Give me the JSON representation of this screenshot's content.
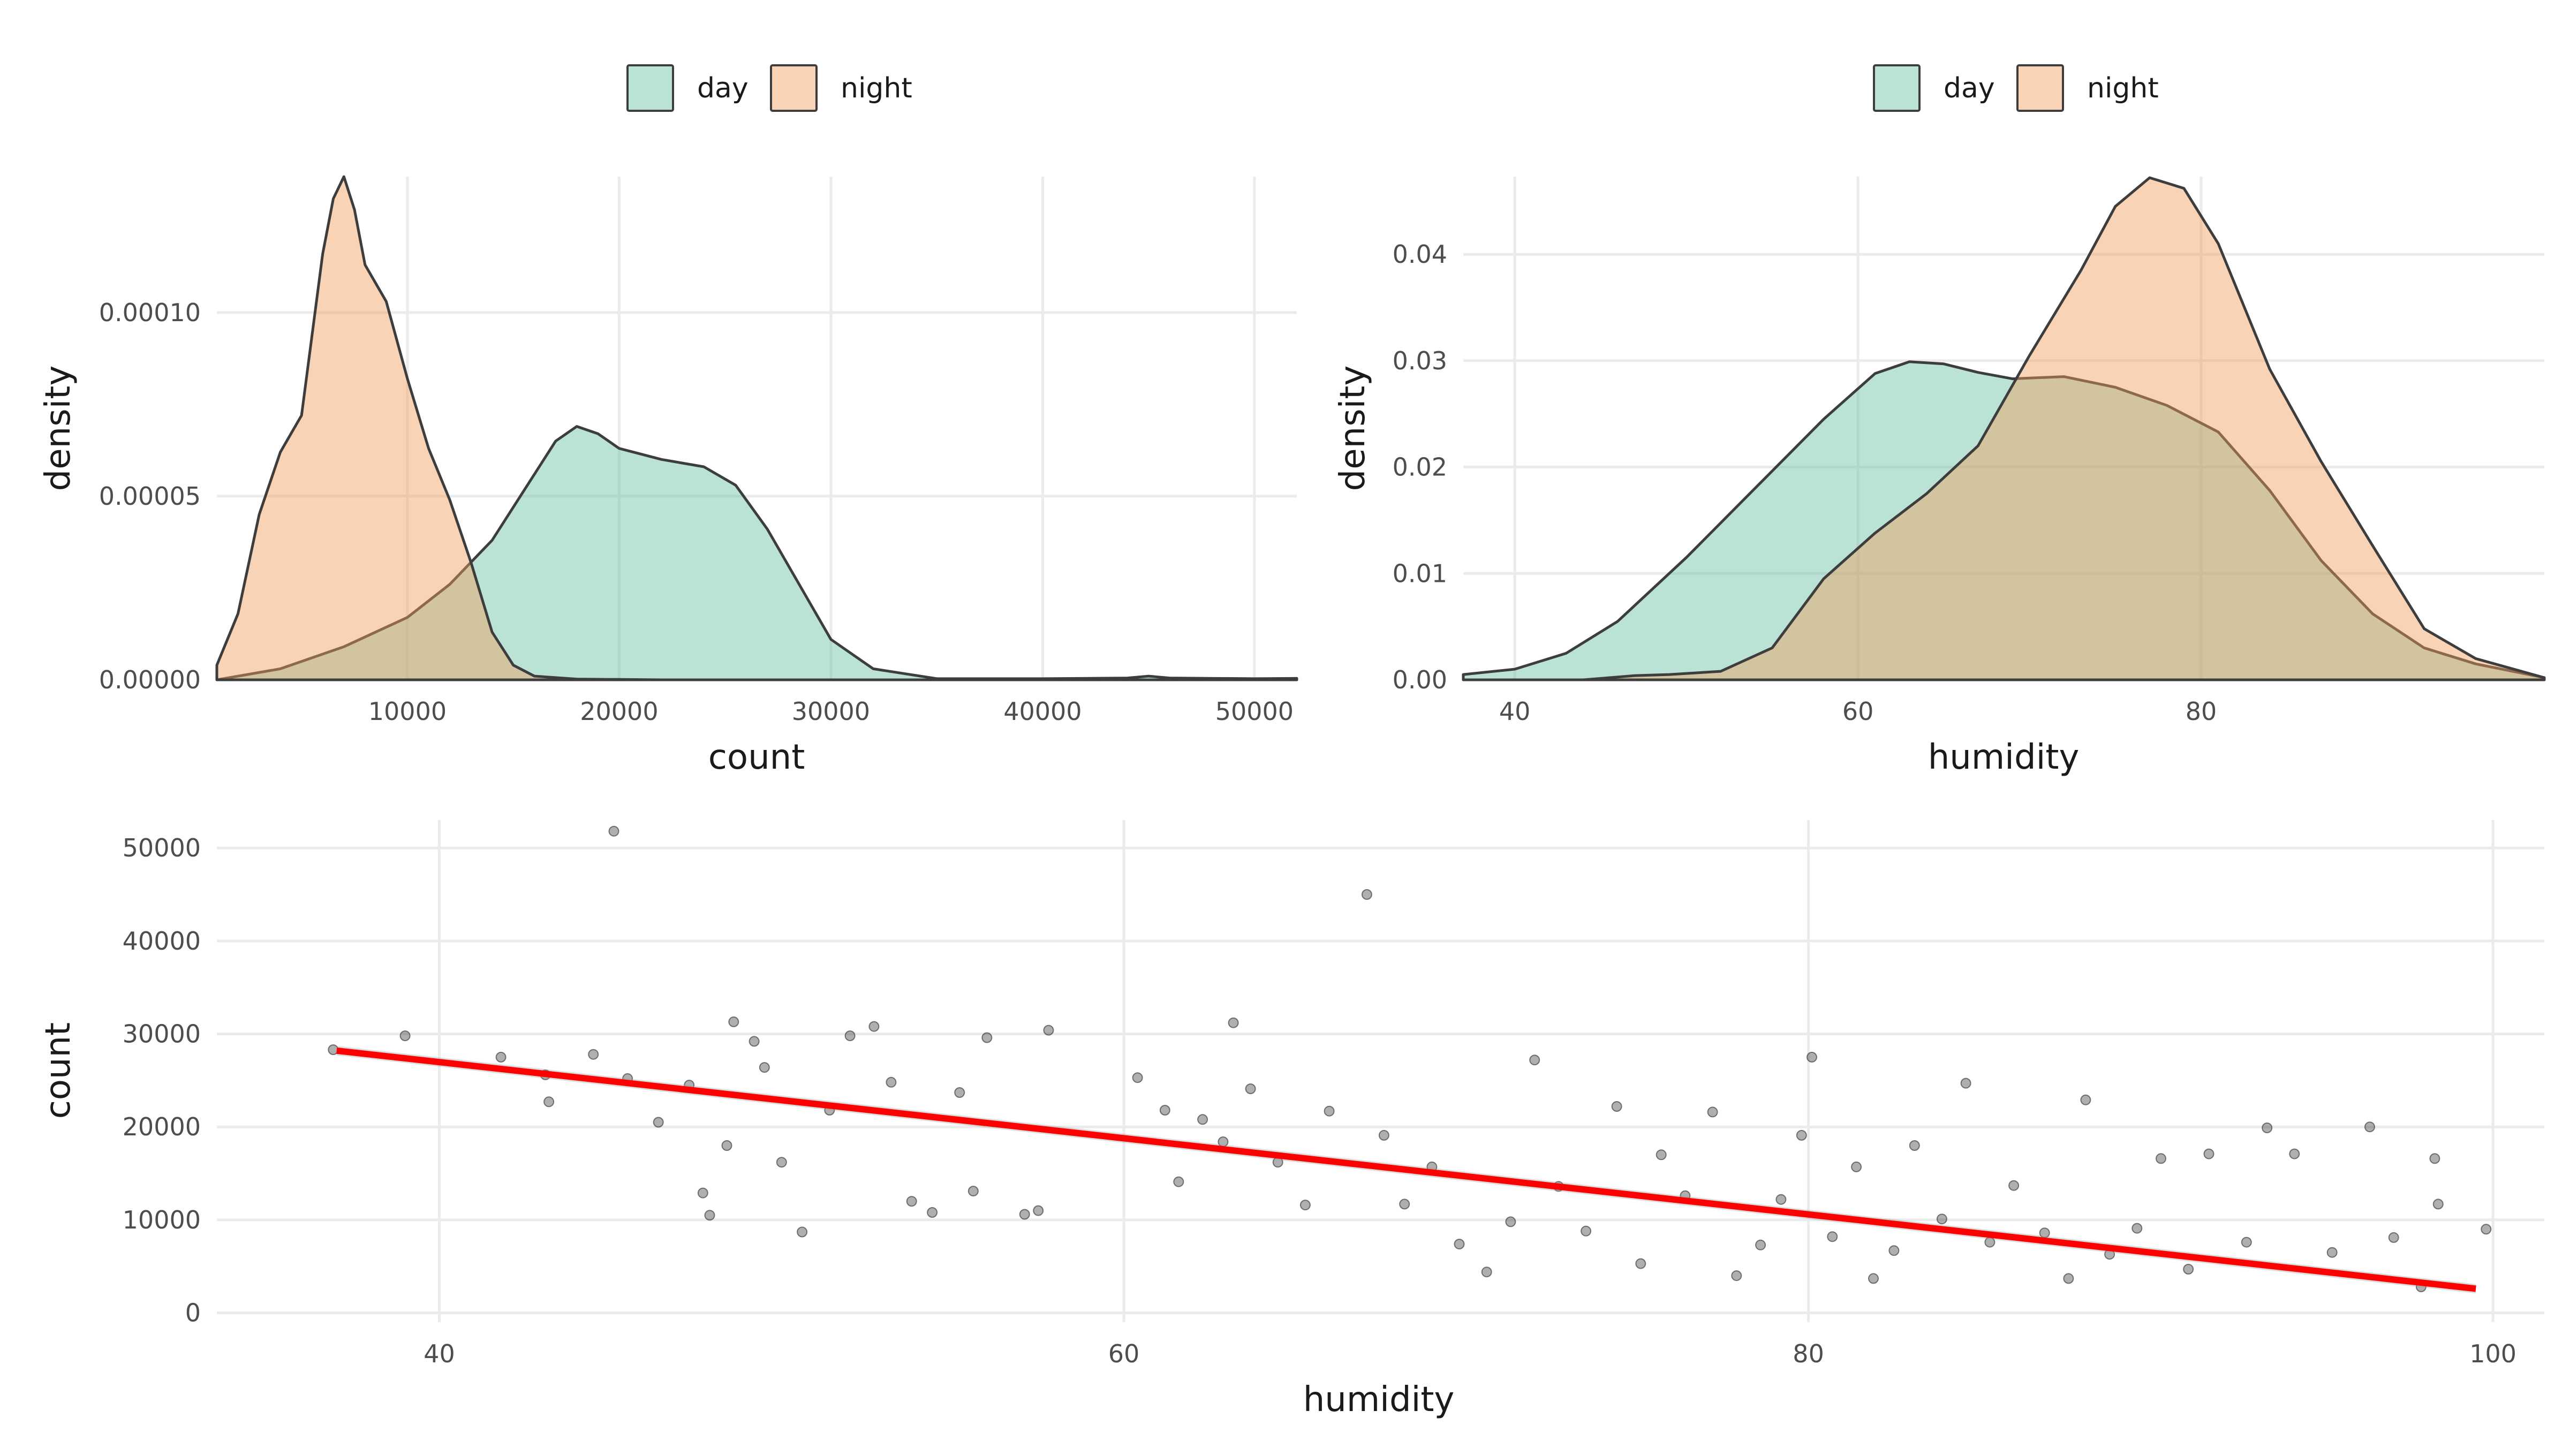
{
  "colors": {
    "day": "#66c2a5",
    "night": "#ef9d5e",
    "regression": "#ff0000",
    "points": "#1a1a1a",
    "outline": "#3d3d3d"
  },
  "chart_data": [
    {
      "type": "area",
      "subtype": "density",
      "xlabel": "count",
      "ylabel": "density",
      "xlim": [
        1000,
        52000
      ],
      "ylim": [
        0,
        0.000137
      ],
      "x_ticks": [
        10000,
        20000,
        30000,
        40000,
        50000
      ],
      "x_tick_labels": [
        "10000",
        "20000",
        "30000",
        "40000",
        "50000"
      ],
      "y_ticks": [
        0,
        5e-05,
        0.0001
      ],
      "y_tick_labels": [
        "0.00000",
        "0.00005",
        "0.00010"
      ],
      "legend": {
        "position": "top",
        "entries": [
          "day",
          "night"
        ]
      },
      "grid": true,
      "series": [
        {
          "name": "day",
          "x": [
            1000,
            4000,
            7000,
            10000,
            12000,
            14000,
            16000,
            17000,
            18000,
            19000,
            20000,
            22000,
            24000,
            25500,
            27000,
            28500,
            30000,
            32000,
            35000,
            40000,
            44000,
            45000,
            46000,
            50000,
            52000
          ],
          "y": [
            0,
            3e-06,
            9e-06,
            1.7e-05,
            2.6e-05,
            3.8e-05,
            5.6e-05,
            6.5e-05,
            6.9e-05,
            6.7e-05,
            6.3e-05,
            6e-05,
            5.8e-05,
            5.3e-05,
            4.1e-05,
            2.6e-05,
            1.1e-05,
            3e-06,
            3e-07,
            3e-07,
            5e-07,
            1e-06,
            5e-07,
            3e-07,
            4e-07
          ]
        },
        {
          "name": "night",
          "x": [
            1000,
            2000,
            3000,
            4000,
            5000,
            6000,
            6500,
            7000,
            7500,
            8000,
            9000,
            10000,
            11000,
            12000,
            13000,
            14000,
            15000,
            16000,
            18000,
            22000,
            30000,
            40000,
            52000
          ],
          "y": [
            4e-06,
            1.8e-05,
            4.5e-05,
            6.2e-05,
            7.2e-05,
            0.000116,
            0.000131,
            0.000137,
            0.000128,
            0.000113,
            0.000103,
            8.2e-05,
            6.3e-05,
            4.9e-05,
            3.2e-05,
            1.3e-05,
            4e-06,
            1e-06,
            2e-07,
            0,
            0,
            0,
            0
          ]
        }
      ]
    },
    {
      "type": "area",
      "subtype": "density",
      "xlabel": "humidity",
      "ylabel": "density",
      "xlim": [
        37,
        100
      ],
      "ylim": [
        0,
        0.0473
      ],
      "x_ticks": [
        40,
        60,
        80
      ],
      "x_tick_labels": [
        "40",
        "60",
        "80"
      ],
      "y_ticks": [
        0,
        0.01,
        0.02,
        0.03,
        0.04
      ],
      "y_tick_labels": [
        "0.00",
        "0.01",
        "0.02",
        "0.03",
        "0.04"
      ],
      "legend": {
        "position": "top",
        "entries": [
          "day",
          "night"
        ]
      },
      "grid": true,
      "series": [
        {
          "name": "day",
          "x": [
            37,
            40,
            43,
            46,
            50,
            54,
            58,
            61,
            63,
            65,
            67,
            69,
            72,
            75,
            78,
            81,
            84,
            87,
            90,
            93,
            96,
            100
          ],
          "y": [
            0.0005,
            0.001,
            0.0025,
            0.0055,
            0.0115,
            0.018,
            0.0245,
            0.0288,
            0.0299,
            0.0297,
            0.0289,
            0.0283,
            0.0285,
            0.0275,
            0.0258,
            0.0233,
            0.0178,
            0.0112,
            0.0062,
            0.003,
            0.0015,
            0.0002
          ]
        },
        {
          "name": "night",
          "x": [
            37,
            44,
            47,
            49,
            52,
            55,
            58,
            61,
            64,
            67,
            70,
            73,
            75,
            77,
            79,
            81,
            84,
            87,
            90,
            93,
            96,
            100
          ],
          "y": [
            0,
            0,
            0.0004,
            0.0005,
            0.0008,
            0.003,
            0.0095,
            0.0138,
            0.0175,
            0.022,
            0.0305,
            0.0385,
            0.0445,
            0.0472,
            0.0462,
            0.041,
            0.0292,
            0.0205,
            0.0126,
            0.0048,
            0.002,
            0.0002
          ]
        }
      ]
    },
    {
      "type": "scatter",
      "xlabel": "humidity",
      "ylabel": "count",
      "xlim": [
        33.5,
        101.5
      ],
      "ylim": [
        -1000,
        53000
      ],
      "x_ticks": [
        40,
        60,
        80,
        100
      ],
      "x_tick_labels": [
        "40",
        "60",
        "80",
        "100"
      ],
      "y_ticks": [
        0,
        10000,
        20000,
        30000,
        40000,
        50000
      ],
      "y_tick_labels": [
        "0",
        "10000",
        "20000",
        "30000",
        "40000",
        "50000"
      ],
      "grid": true,
      "regression": {
        "method": "linear",
        "x": [
          37,
          99.5
        ],
        "y": [
          28200,
          2600
        ],
        "se_band": 500
      },
      "series": [
        {
          "name": "observations",
          "points": [
            [
              36.9,
              28300
            ],
            [
              39,
              29800
            ],
            [
              41.8,
              27500
            ],
            [
              43.1,
              25600
            ],
            [
              43.2,
              22700
            ],
            [
              44.5,
              27800
            ],
            [
              45.1,
              51800
            ],
            [
              45.5,
              25200
            ],
            [
              46.4,
              20500
            ],
            [
              47.3,
              24500
            ],
            [
              47.7,
              12900
            ],
            [
              47.9,
              10500
            ],
            [
              48.4,
              18000
            ],
            [
              48.6,
              31300
            ],
            [
              49.2,
              29200
            ],
            [
              49.5,
              26400
            ],
            [
              50.0,
              16200
            ],
            [
              50.6,
              8700
            ],
            [
              51.4,
              21800
            ],
            [
              52.0,
              29800
            ],
            [
              52.7,
              30800
            ],
            [
              53.2,
              24800
            ],
            [
              53.8,
              12000
            ],
            [
              54.4,
              10800
            ],
            [
              55.2,
              23700
            ],
            [
              55.6,
              13100
            ],
            [
              56.0,
              29600
            ],
            [
              57.1,
              10600
            ],
            [
              57.5,
              11000
            ],
            [
              57.8,
              30400
            ],
            [
              60.4,
              25300
            ],
            [
              61.2,
              21800
            ],
            [
              61.6,
              14100
            ],
            [
              62.3,
              20800
            ],
            [
              62.9,
              18400
            ],
            [
              63.2,
              31200
            ],
            [
              63.7,
              24100
            ],
            [
              64.5,
              16200
            ],
            [
              65.3,
              11600
            ],
            [
              66.0,
              21700
            ],
            [
              67.1,
              45000
            ],
            [
              67.6,
              19100
            ],
            [
              68.2,
              11700
            ],
            [
              69.0,
              15700
            ],
            [
              69.8,
              7400
            ],
            [
              70.6,
              4400
            ],
            [
              71.3,
              9800
            ],
            [
              72.0,
              27200
            ],
            [
              72.7,
              13600
            ],
            [
              73.5,
              8800
            ],
            [
              74.4,
              22200
            ],
            [
              75.1,
              5300
            ],
            [
              75.7,
              17000
            ],
            [
              76.4,
              12600
            ],
            [
              77.2,
              21600
            ],
            [
              77.9,
              4000
            ],
            [
              78.6,
              7300
            ],
            [
              79.2,
              12200
            ],
            [
              79.8,
              19100
            ],
            [
              80.1,
              27500
            ],
            [
              80.7,
              8200
            ],
            [
              81.4,
              15700
            ],
            [
              81.9,
              3700
            ],
            [
              82.5,
              6700
            ],
            [
              83.1,
              18000
            ],
            [
              83.9,
              10100
            ],
            [
              84.6,
              24700
            ],
            [
              85.3,
              7600
            ],
            [
              86.0,
              13700
            ],
            [
              86.9,
              8600
            ],
            [
              87.6,
              3700
            ],
            [
              88.1,
              22900
            ],
            [
              88.8,
              6300
            ],
            [
              89.6,
              9100
            ],
            [
              90.3,
              16600
            ],
            [
              91.1,
              4700
            ],
            [
              91.7,
              17100
            ],
            [
              92.8,
              7600
            ],
            [
              93.4,
              19900
            ],
            [
              94.2,
              17100
            ],
            [
              95.3,
              6500
            ],
            [
              96.4,
              20000
            ],
            [
              97.1,
              8100
            ],
            [
              97.9,
              2800
            ],
            [
              98.3,
              16600
            ],
            [
              98.4,
              11700
            ],
            [
              99.8,
              9000
            ]
          ]
        }
      ]
    }
  ]
}
